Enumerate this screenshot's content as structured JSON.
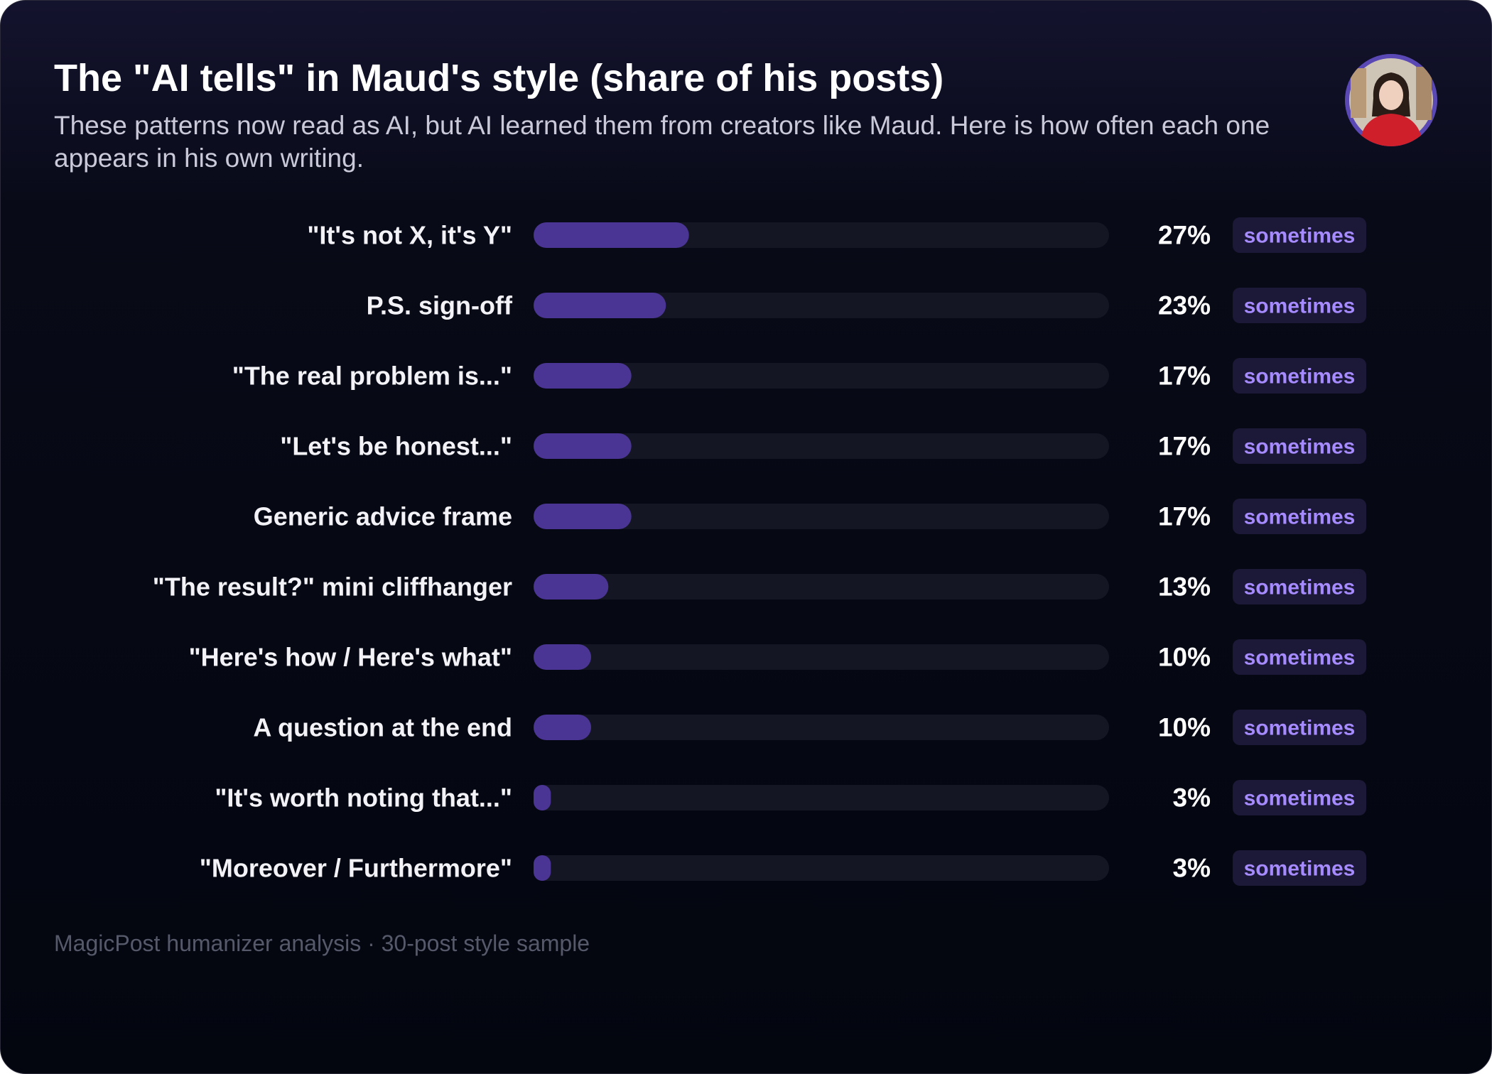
{
  "header": {
    "title": "The \"AI tells\" in Maud's style (share of his posts)",
    "subtitle": "These patterns now read as AI, but AI learned them from creators like Maud. Here is how often each one appears in his own writing."
  },
  "colors": {
    "bar_fill": "#4a3594",
    "track": "#141624",
    "badge_bg": "#1c1838",
    "badge_text": "#a58bff",
    "avatar_ring": "#5a49b5"
  },
  "chart_data": {
    "type": "bar",
    "orientation": "horizontal",
    "xlim": [
      0,
      100
    ],
    "value_suffix": "%",
    "categories": [
      "\"It's not X, it's Y\"",
      "P.S. sign-off",
      "\"The real problem is...\"",
      "\"Let's be honest...\"",
      "Generic advice frame",
      "\"The result?\" mini cliffhanger",
      "\"Here's how / Here's what\"",
      "A question at the end",
      "\"It's worth noting that...\"",
      "\"Moreover / Furthermore\""
    ],
    "values": [
      27,
      23,
      17,
      17,
      17,
      13,
      10,
      10,
      3,
      3
    ],
    "value_labels": [
      "27%",
      "23%",
      "17%",
      "17%",
      "17%",
      "13%",
      "10%",
      "10%",
      "3%",
      "3%"
    ],
    "badges": [
      "sometimes",
      "sometimes",
      "sometimes",
      "sometimes",
      "sometimes",
      "sometimes",
      "sometimes",
      "sometimes",
      "sometimes",
      "sometimes"
    ]
  },
  "footer": {
    "source": "MagicPost humanizer analysis · 30-post style sample"
  }
}
